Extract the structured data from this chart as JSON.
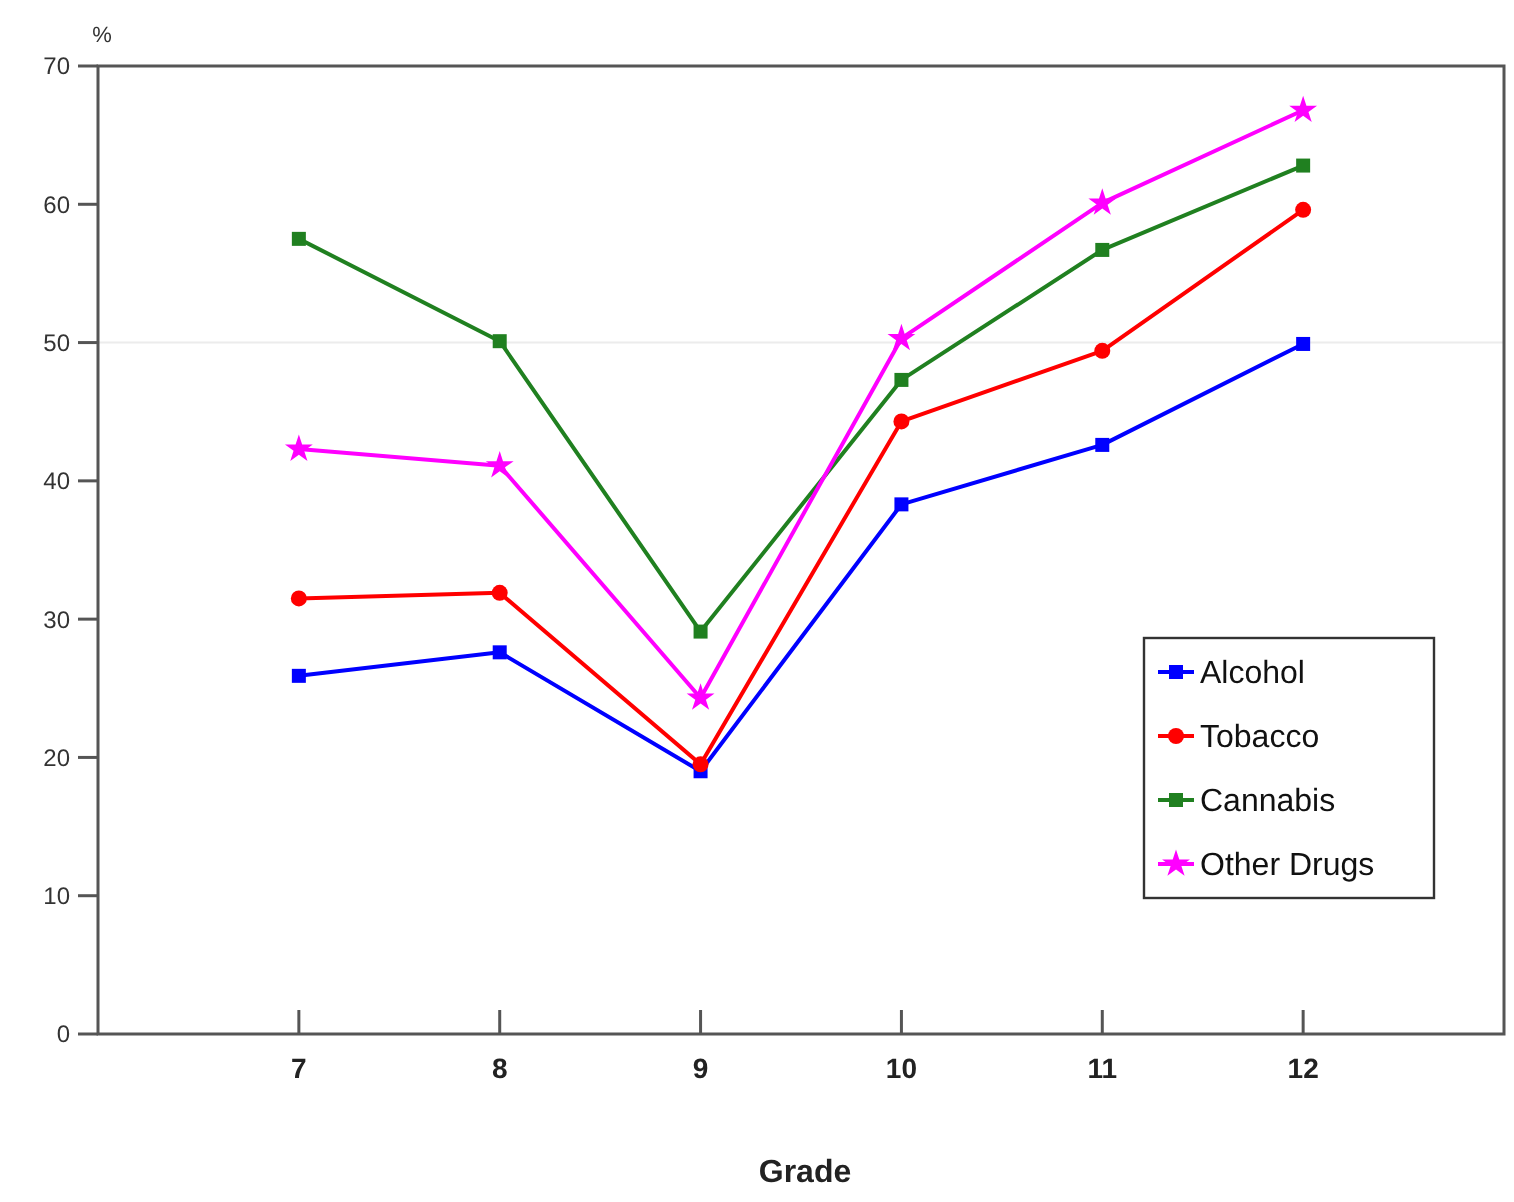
{
  "chart_data": {
    "type": "line",
    "xlabel": "Grade",
    "ylabel": "%",
    "x": [
      7,
      8,
      9,
      10,
      11,
      12
    ],
    "xlim": [
      6,
      13
    ],
    "xticks": [
      7,
      8,
      9,
      10,
      11,
      12
    ],
    "ylim": [
      0,
      70
    ],
    "yticks": [
      0,
      10,
      20,
      30,
      40,
      50,
      60,
      70
    ],
    "grid": false,
    "legend": "bottom right",
    "line_style": "solid",
    "ref_lines": [
      {
        "axis": "y",
        "value": 50,
        "color": "#ececec"
      }
    ],
    "series": [
      {
        "name": "Alcohol",
        "color": "#0000ff",
        "marker": "square",
        "values": [
          25.9,
          27.6,
          19.0,
          38.3,
          42.6,
          49.9
        ]
      },
      {
        "name": "Tobacco",
        "color": "#ff0000",
        "marker": "circle",
        "values": [
          31.5,
          31.9,
          19.5,
          44.3,
          49.4,
          59.6
        ]
      },
      {
        "name": "Cannabis",
        "color": "#208020",
        "marker": "square",
        "values": [
          57.5,
          50.1,
          29.1,
          47.3,
          56.7,
          62.8
        ]
      },
      {
        "name": "Other Drugs",
        "color": "#ff00ff",
        "marker": "star",
        "values": [
          42.3,
          41.1,
          24.3,
          50.3,
          60.1,
          66.8
        ]
      }
    ]
  }
}
